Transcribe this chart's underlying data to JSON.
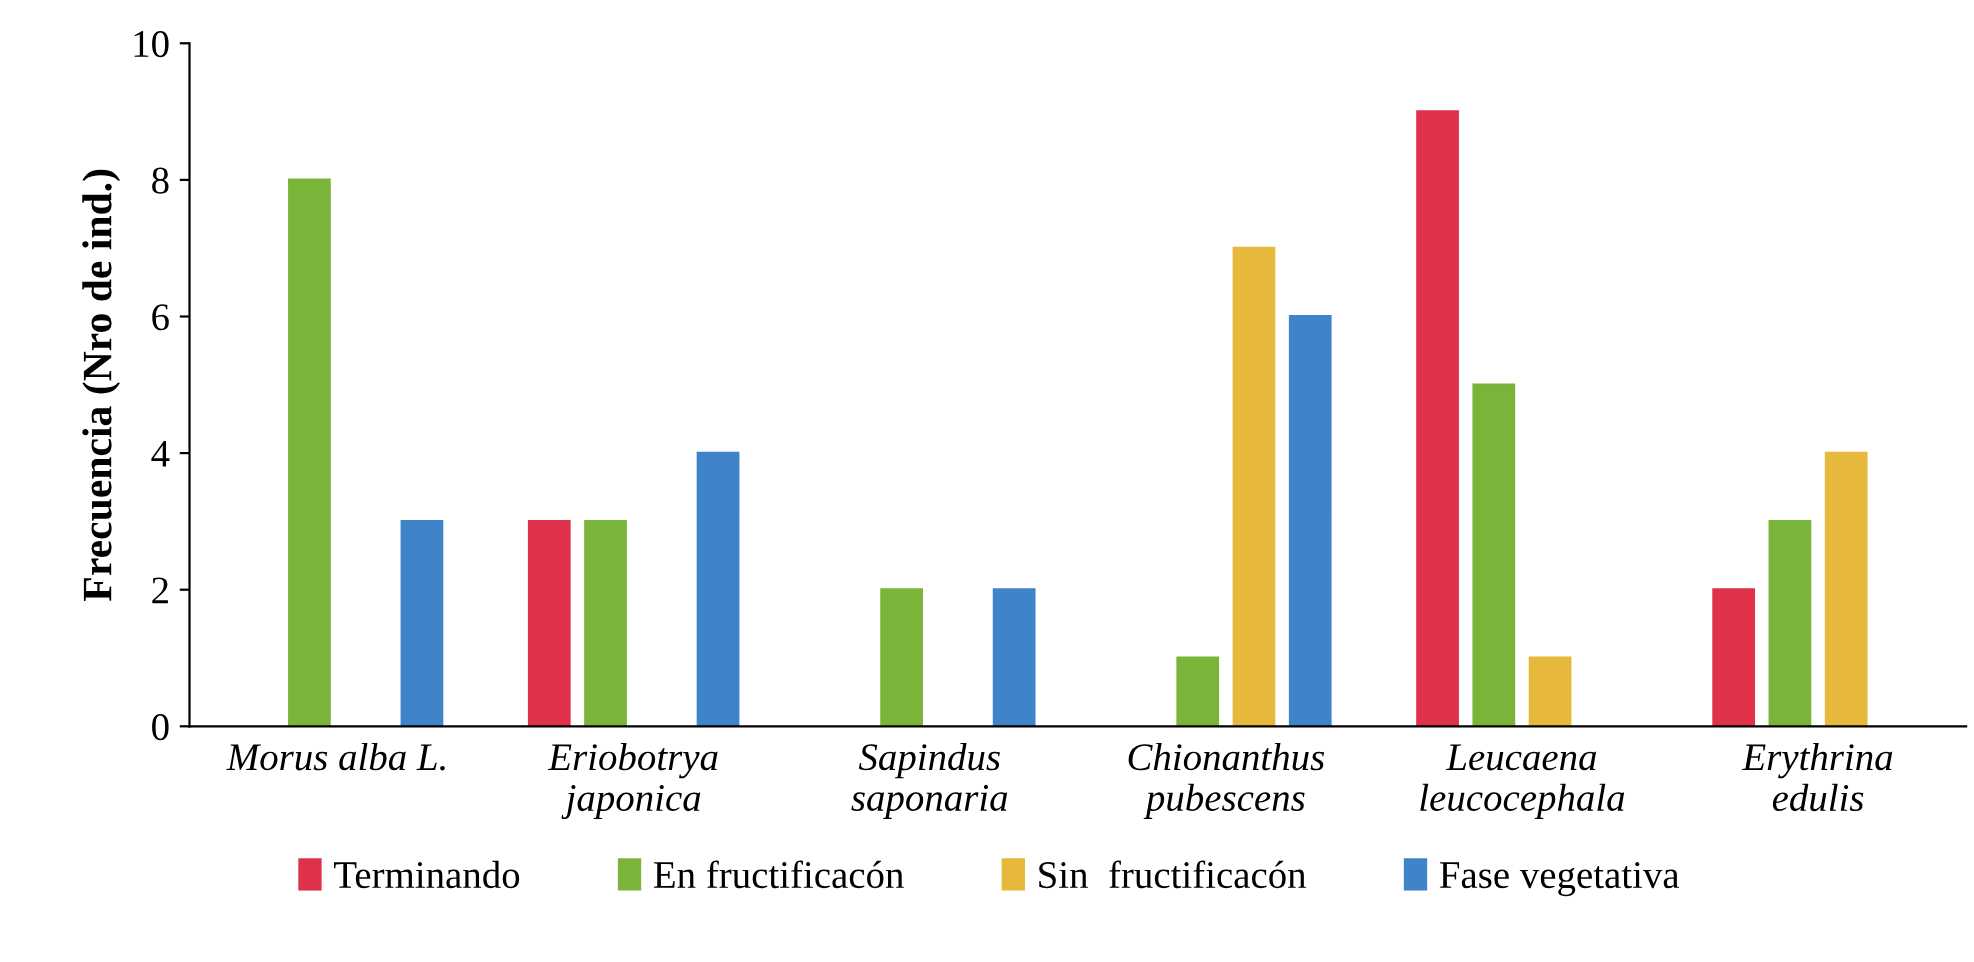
{
  "chart_data": {
    "type": "bar",
    "ylabel": "Frecuencia (Nro de ind.)",
    "categories": [
      "Morus alba L.",
      "Eriobotrya\njaponica",
      "Sapindus\nsaponaria",
      "Chionanthus\npubescens",
      "Leucaena\nleucocephala",
      "Erythrina\nedulis"
    ],
    "series": [
      {
        "name": "Terminando",
        "color": "#e0314a",
        "values": [
          null,
          3,
          null,
          null,
          9,
          2
        ]
      },
      {
        "name": "En fructificacón",
        "color": "#7ab53a",
        "values": [
          8,
          3,
          2,
          1,
          5,
          3
        ]
      },
      {
        "name": "Sin  fructificacón",
        "color": "#e6b93c",
        "values": [
          null,
          null,
          null,
          7,
          1,
          4
        ]
      },
      {
        "name": "Fase vegetativa",
        "color": "#3f84c8",
        "values": [
          3,
          4,
          2,
          6,
          null,
          null
        ]
      }
    ],
    "ylim": [
      0,
      10
    ],
    "yticks": [
      0,
      2,
      4,
      6,
      8,
      10
    ],
    "grid": false,
    "legend": "bottom"
  }
}
